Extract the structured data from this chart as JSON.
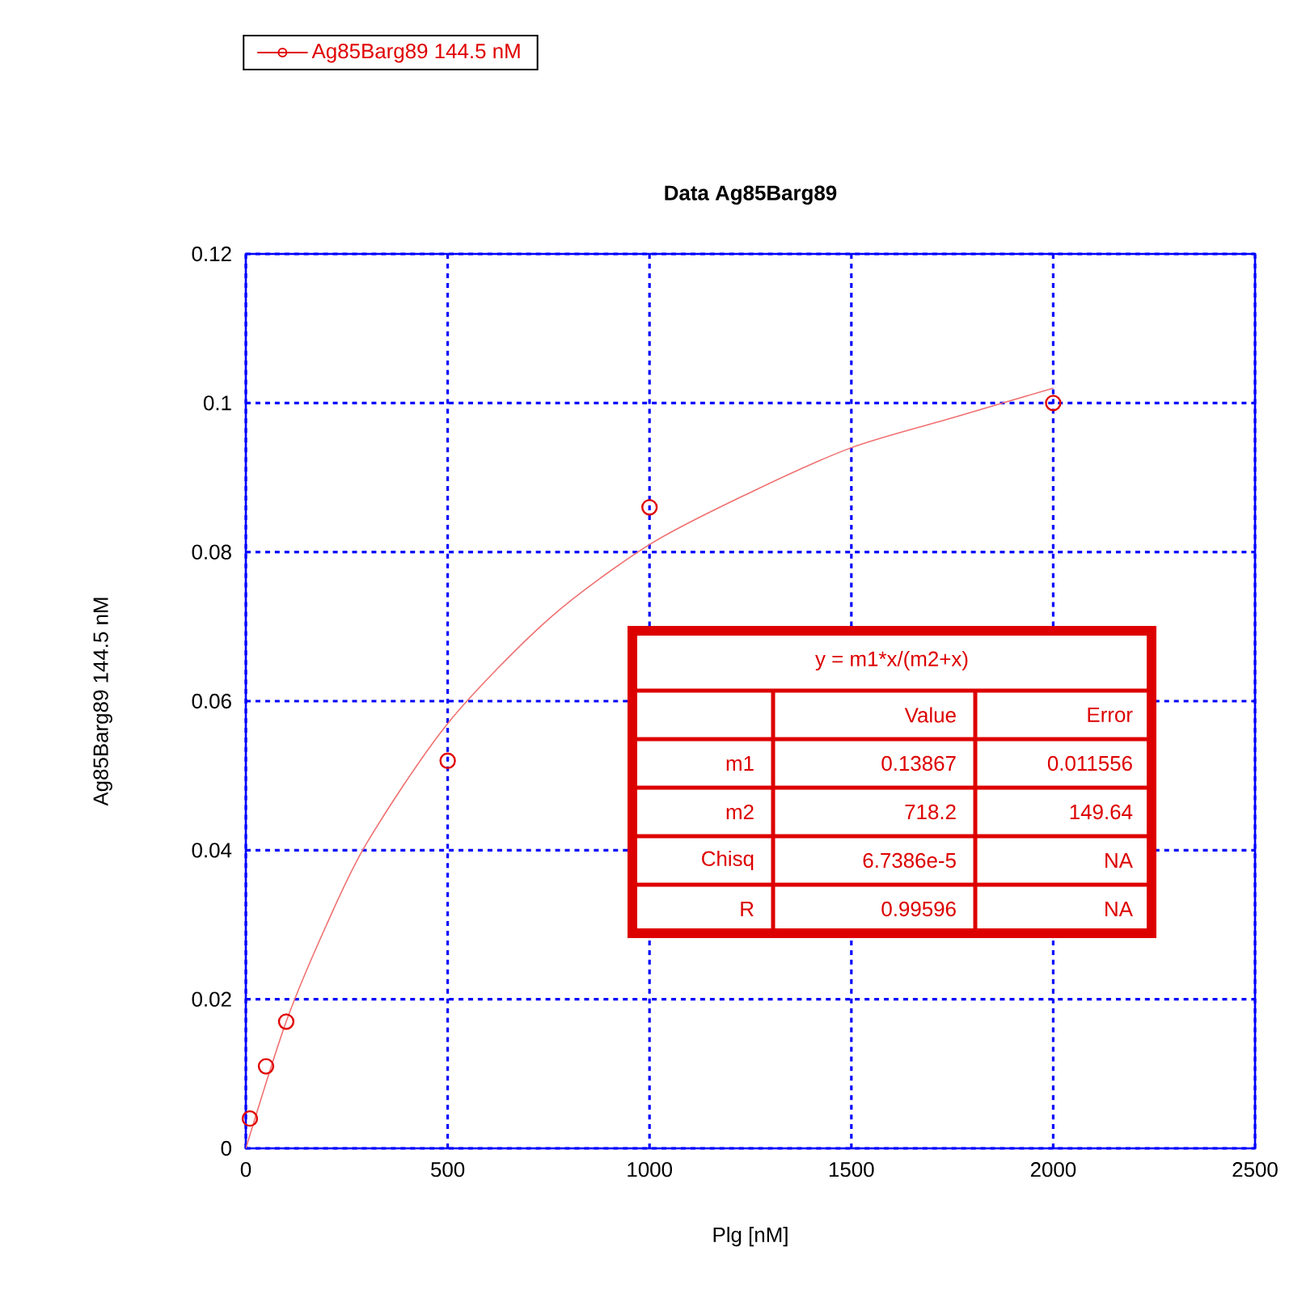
{
  "chart_data": {
    "type": "scatter",
    "title": "Data Ag85Barg89",
    "xlabel": "Plg [nM]",
    "ylabel": "Ag85Barg89 144.5 nM",
    "xlim": [
      0,
      2500
    ],
    "ylim": [
      0,
      0.12
    ],
    "xticks": [
      0,
      500,
      1000,
      1500,
      2000,
      2500
    ],
    "yticks": [
      0,
      0.02,
      0.04,
      0.06,
      0.08,
      0.1,
      0.12
    ],
    "grid": true,
    "legend": "top left",
    "marker": "circle",
    "series": [
      {
        "name": "Ag85Barg89 144.5 nM",
        "color": "#e00000",
        "x": [
          10,
          50,
          100,
          500,
          1000,
          2000
        ],
        "values": [
          0.004,
          0.011,
          0.017,
          0.052,
          0.086,
          0.1
        ]
      },
      {
        "type": "line",
        "marker": "none",
        "color": "#f07070",
        "x": [
          0,
          100,
          200,
          300,
          500,
          750,
          1000,
          1250,
          1500,
          1750,
          2000
        ],
        "values": [
          0,
          0.017,
          0.03,
          0.041,
          0.057,
          0.071,
          0.081,
          0.088,
          0.094,
          0.098,
          0.102
        ]
      }
    ],
    "annotations": [
      "y = m1*x/(m2+x)",
      "Value",
      "Error",
      "m1",
      "0.13867",
      "0.011556",
      "m2",
      "718.2",
      "149.64",
      "Chisq",
      "6.7386e-5",
      "NA",
      "R",
      "0.99596",
      "NA"
    ]
  }
}
